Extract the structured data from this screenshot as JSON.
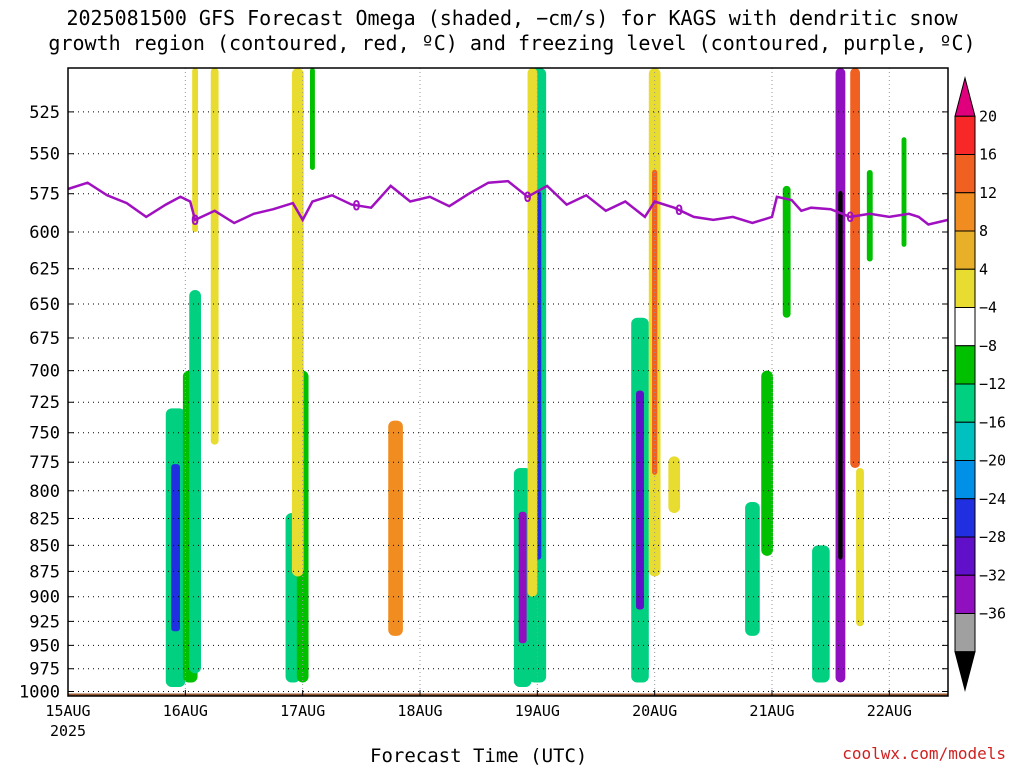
{
  "title_line1": "2025081500 GFS Forecast Omega (shaded, −cm/s) for KAGS with dendritic snow",
  "title_line2": "growth region (contoured, red, ºC) and freezing level (contoured, purple, ºC)",
  "credit": "coolwx.com/models",
  "chart_data": {
    "type": "heatmap",
    "title": "2025081500 GFS Forecast Omega (shaded, −cm/s) for KAGS with dendritic snow growth region (contoured, red, ºC) and freezing level (contoured, purple, ºC)",
    "xlabel": "Forecast Time (UTC)",
    "ylabel": "",
    "x_ticks": [
      "15AUG",
      "16AUG",
      "17AUG",
      "18AUG",
      "19AUG",
      "20AUG",
      "21AUG",
      "22AUG"
    ],
    "x_tick_year": "2025",
    "y_ticks": [
      525,
      550,
      575,
      600,
      625,
      650,
      675,
      700,
      725,
      750,
      775,
      800,
      825,
      850,
      875,
      900,
      925,
      950,
      975,
      1000
    ],
    "y_range_hpa": [
      500,
      1005
    ],
    "y_scale": "log",
    "x_range_hours": [
      0,
      180
    ],
    "grid": true,
    "colorbar": {
      "labels": [
        "20",
        "16",
        "12",
        "8",
        "4",
        "−4",
        "−8",
        "−12",
        "−16",
        "−20",
        "−24",
        "−28",
        "−32",
        "−36"
      ],
      "colors": [
        "#e0007e",
        "#f82828",
        "#f06020",
        "#f08c20",
        "#e8b028",
        "#e8dc30",
        "#ffffff",
        "#00c000",
        "#00d080",
        "#00c0c0",
        "#0090e8",
        "#2030e0",
        "#6010c8",
        "#9010c0",
        "#a0a0a0",
        "#000000"
      ]
    },
    "freezing_level": {
      "label": "0",
      "color": "#a010c0",
      "points": [
        [
          0,
          572
        ],
        [
          4,
          568
        ],
        [
          8,
          576
        ],
        [
          12,
          581
        ],
        [
          16,
          590
        ],
        [
          20,
          582
        ],
        [
          23,
          577
        ],
        [
          25,
          580
        ],
        [
          26,
          592
        ],
        [
          30,
          586
        ],
        [
          34,
          594
        ],
        [
          38,
          588
        ],
        [
          42,
          585
        ],
        [
          46,
          581
        ],
        [
          48,
          592
        ],
        [
          50,
          580
        ],
        [
          54,
          576
        ],
        [
          58,
          582
        ],
        [
          62,
          584
        ],
        [
          66,
          570
        ],
        [
          70,
          580
        ],
        [
          74,
          577
        ],
        [
          78,
          583
        ],
        [
          82,
          575
        ],
        [
          86,
          568
        ],
        [
          90,
          567
        ],
        [
          94,
          577
        ],
        [
          98,
          570
        ],
        [
          102,
          582
        ],
        [
          106,
          576
        ],
        [
          110,
          586
        ],
        [
          114,
          580
        ],
        [
          118,
          590
        ],
        [
          120,
          580
        ],
        [
          124,
          584
        ],
        [
          128,
          590
        ],
        [
          132,
          592
        ],
        [
          136,
          590
        ],
        [
          140,
          594
        ],
        [
          144,
          590
        ],
        [
          145,
          577
        ],
        [
          148,
          579
        ],
        [
          150,
          586
        ],
        [
          152,
          584
        ],
        [
          156,
          585
        ],
        [
          160,
          590
        ],
        [
          164,
          588
        ],
        [
          168,
          590
        ],
        [
          172,
          588
        ],
        [
          174,
          590
        ],
        [
          176,
          595
        ],
        [
          180,
          592
        ]
      ]
    },
    "omega_regions": [
      {
        "t": 22,
        "p_top": 730,
        "p_bot": 995,
        "w": 2.0,
        "v": -10,
        "core_v": -20
      },
      {
        "t": 25,
        "p_top": 700,
        "p_bot": 990,
        "w": 1.5,
        "v": -6
      },
      {
        "t": 26,
        "p_top": 640,
        "p_bot": 980,
        "w": 1.2,
        "v": -8
      },
      {
        "t": 30,
        "p_top": 500,
        "p_bot": 760,
        "w": 0.8,
        "v": 6
      },
      {
        "t": 26,
        "p_top": 500,
        "p_bot": 600,
        "w": 0.6,
        "v": 6
      },
      {
        "t": 46,
        "p_top": 820,
        "p_bot": 990,
        "w": 1.5,
        "v": -10
      },
      {
        "t": 48,
        "p_top": 700,
        "p_bot": 990,
        "w": 1.2,
        "v": -6
      },
      {
        "t": 47,
        "p_top": 500,
        "p_bot": 880,
        "w": 1.2,
        "v": 6
      },
      {
        "t": 50,
        "p_top": 500,
        "p_bot": 560,
        "w": 0.5,
        "v": -6
      },
      {
        "t": 67,
        "p_top": 740,
        "p_bot": 940,
        "w": 1.5,
        "v": 8
      },
      {
        "t": 93,
        "p_top": 780,
        "p_bot": 995,
        "w": 1.8,
        "v": -10,
        "core_v": -30
      },
      {
        "t": 96,
        "p_top": 500,
        "p_bot": 990,
        "w": 1.8,
        "v": -8,
        "core_v": -22
      },
      {
        "t": 95,
        "p_top": 500,
        "p_bot": 900,
        "w": 1.0,
        "v": 6
      },
      {
        "t": 117,
        "p_top": 660,
        "p_bot": 990,
        "w": 1.8,
        "v": -10,
        "core_v": -24
      },
      {
        "t": 120,
        "p_top": 500,
        "p_bot": 880,
        "w": 1.2,
        "v": 6,
        "core_v": 12
      },
      {
        "t": 124,
        "p_top": 770,
        "p_bot": 820,
        "w": 1.2,
        "v": 6
      },
      {
        "t": 140,
        "p_top": 810,
        "p_bot": 940,
        "w": 1.5,
        "v": -10
      },
      {
        "t": 143,
        "p_top": 700,
        "p_bot": 860,
        "w": 1.2,
        "v": -6
      },
      {
        "t": 147,
        "p_top": 570,
        "p_bot": 660,
        "w": 0.8,
        "v": -6
      },
      {
        "t": 154,
        "p_top": 850,
        "p_bot": 990,
        "w": 1.8,
        "v": -8
      },
      {
        "t": 158,
        "p_top": 500,
        "p_bot": 990,
        "w": 1.0,
        "v": -30,
        "core_v": -40
      },
      {
        "t": 161,
        "p_top": 500,
        "p_bot": 780,
        "w": 1.0,
        "v": 12
      },
      {
        "t": 162,
        "p_top": 780,
        "p_bot": 930,
        "w": 0.8,
        "v": 6
      },
      {
        "t": 164,
        "p_top": 560,
        "p_bot": 620,
        "w": 0.6,
        "v": -6
      },
      {
        "t": 171,
        "p_top": 540,
        "p_bot": 610,
        "w": 0.5,
        "v": -6
      }
    ]
  }
}
